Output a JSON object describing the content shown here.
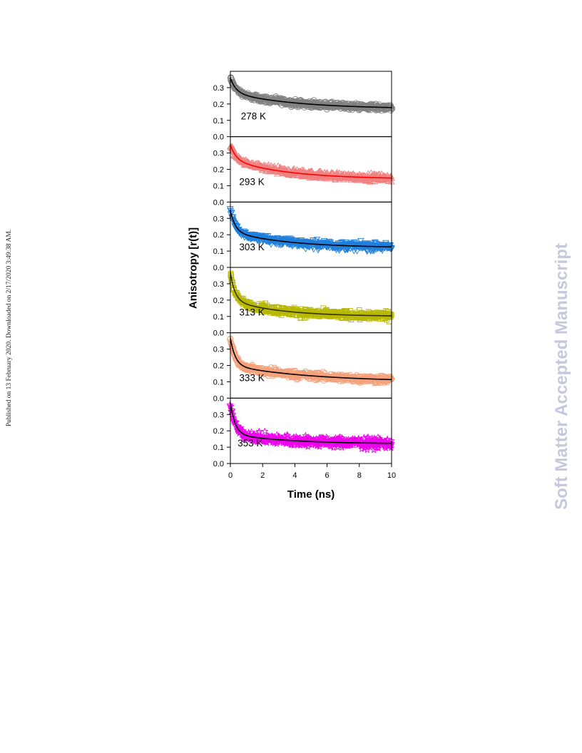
{
  "side_note": "Published on 13 February 2020. Downloaded on 2/17/2020 3:49:38 AM.",
  "watermark": "Soft Matter Accepted Manuscript",
  "chart_data": {
    "type": "scatter",
    "xlabel": "Time (ns)",
    "ylabel": "Anisotropy [r(t)]",
    "xlim": [
      0,
      10
    ],
    "x_ticks": [
      "0",
      "2",
      "4",
      "6",
      "8",
      "10"
    ],
    "ylim": [
      0.0,
      0.4
    ],
    "y_ticks": [
      "0.0",
      "0.1",
      "0.2",
      "0.3"
    ],
    "grid": false,
    "fit_line": "biexponential decay fit",
    "panels": [
      {
        "label": "278 K",
        "marker": "circle",
        "color": "#808080",
        "fit_color": "#000000",
        "r0": 0.36,
        "a1": 0.09,
        "t1": 0.35,
        "a2": 0.1,
        "t2": 4.0,
        "rinf": 0.17,
        "noise": 0.016
      },
      {
        "label": "293 K",
        "marker": "triangle",
        "color": "#f08080",
        "fit_color": "#ff0000",
        "r0": 0.35,
        "a1": 0.09,
        "t1": 0.35,
        "a2": 0.12,
        "t2": 3.5,
        "rinf": 0.14,
        "noise": 0.02
      },
      {
        "label": "303 K",
        "marker": "inv-triangle",
        "color": "#1e7fdc",
        "fit_color": "#000000",
        "r0": 0.35,
        "a1": 0.13,
        "t1": 0.3,
        "a2": 0.1,
        "t2": 3.5,
        "rinf": 0.12,
        "noise": 0.022
      },
      {
        "label": "313 K",
        "marker": "square",
        "color": "#b8b800",
        "fit_color": "#333300",
        "r0": 0.37,
        "a1": 0.17,
        "t1": 0.28,
        "a2": 0.1,
        "t2": 3.0,
        "rinf": 0.1,
        "noise": 0.022
      },
      {
        "label": "333 K",
        "marker": "hexagon",
        "color": "#f4a07a",
        "fit_color": "#000000",
        "r0": 0.37,
        "a1": 0.17,
        "t1": 0.3,
        "a2": 0.1,
        "t2": 5.0,
        "rinf": 0.09,
        "noise": 0.02
      },
      {
        "label": "353 K",
        "marker": "star",
        "color": "#ee00ee",
        "fit_color": "#000000",
        "r0": 0.37,
        "a1": 0.19,
        "t1": 0.3,
        "a2": 0.06,
        "t2": 3.5,
        "rinf": 0.12,
        "noise": 0.028
      }
    ]
  }
}
